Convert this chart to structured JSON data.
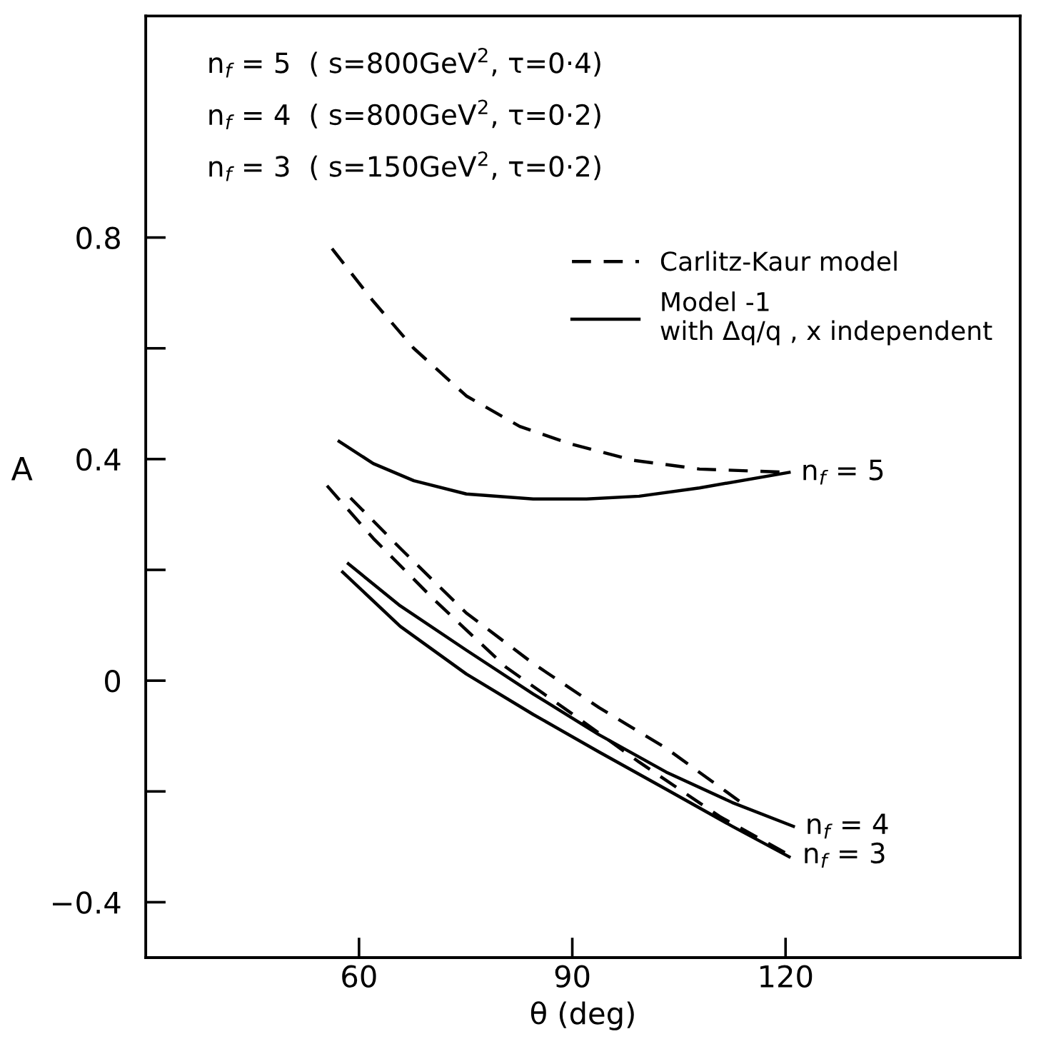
{
  "chart_data": {
    "type": "line",
    "xlabel": "θ (deg)",
    "ylabel": "A",
    "xlim": [
      30,
      153
    ],
    "ylim": [
      -0.5,
      1.2
    ],
    "xticks": [
      60,
      90,
      120
    ],
    "yticks": [
      {
        "value": -0.4,
        "label": "−0.4"
      },
      {
        "value": -0.2,
        "label": null
      },
      0,
      {
        "value": 0.2,
        "label": null
      },
      0.4,
      {
        "value": 0.6,
        "label": null
      },
      0.8
    ],
    "grid": false,
    "legend": "top right",
    "marker": "none",
    "series": [
      {
        "name": "Carlitz-Kaur model",
        "color": "#000000",
        "line_style": "dashed",
        "x": [
          56.2,
          62,
          67.7,
          75.1,
          82.6,
          89.6,
          98.5,
          107.9,
          120.5
        ],
        "values": [
          0.78,
          0.685,
          0.6,
          0.514,
          0.459,
          0.428,
          0.398,
          0.382,
          0.376
        ]
      },
      {
        "name": "Model -1\nwith Δq/q , x independent",
        "color": "#000000",
        "line_style": "solid",
        "x": [
          57.2,
          62,
          67.7,
          75.1,
          84.5,
          92,
          99.4,
          107.9,
          120.5
        ],
        "values": [
          0.432,
          0.392,
          0.361,
          0.337,
          0.328,
          0.328,
          0.333,
          0.348,
          0.376
        ]
      },
      {
        "color": "#000000",
        "line_style": "dashed",
        "x": [
          58.8,
          65.8,
          75.1,
          84.5,
          93.8,
          103.2,
          114.4
        ],
        "values": [
          0.33,
          0.239,
          0.122,
          0.031,
          -0.049,
          -0.122,
          -0.226
        ]
      },
      {
        "color": "#000000",
        "line_style": "solid",
        "x": [
          58.5,
          65.8,
          75.1,
          84.5,
          93.8,
          103.2,
          112.5,
          121.1
        ],
        "values": [
          0.211,
          0.135,
          0.055,
          -0.024,
          -0.098,
          -0.165,
          -0.22,
          -0.263
        ]
      },
      {
        "color": "#000000",
        "line_style": "dashed",
        "x": [
          55.5,
          62,
          70.5,
          80.7,
          90.1,
          99.4,
          110.7,
          120.7
        ],
        "values": [
          0.352,
          0.257,
          0.147,
          0.024,
          -0.061,
          -0.147,
          -0.245,
          -0.316
        ]
      },
      {
        "color": "#000000",
        "line_style": "solid",
        "x": [
          57.7,
          65.8,
          75.1,
          84.5,
          93.8,
          103.2,
          112.5,
          120.5
        ],
        "values": [
          0.196,
          0.098,
          0.012,
          -0.061,
          -0.129,
          -0.196,
          -0.263,
          -0.318
        ]
      }
    ],
    "annotations": [
      "n$_{f}$ = 5  ( s=800GeV$^{2}$, τ=0·4)",
      "n$_{f}$ = 4  ( s=800GeV$^{2}$, τ=0·2)",
      "n$_{f}$ = 3  ( s=150GeV$^{2}$, τ=0·2)",
      {
        "text": "n$_{f}$ = 5",
        "x": 120.5,
        "y": 0.376
      },
      {
        "text": "n$_{f}$ = 4",
        "x": 121.1,
        "y": -0.263
      },
      {
        "text": "n$_{f}$ = 3",
        "x": 120.7,
        "y": -0.316
      }
    ]
  }
}
